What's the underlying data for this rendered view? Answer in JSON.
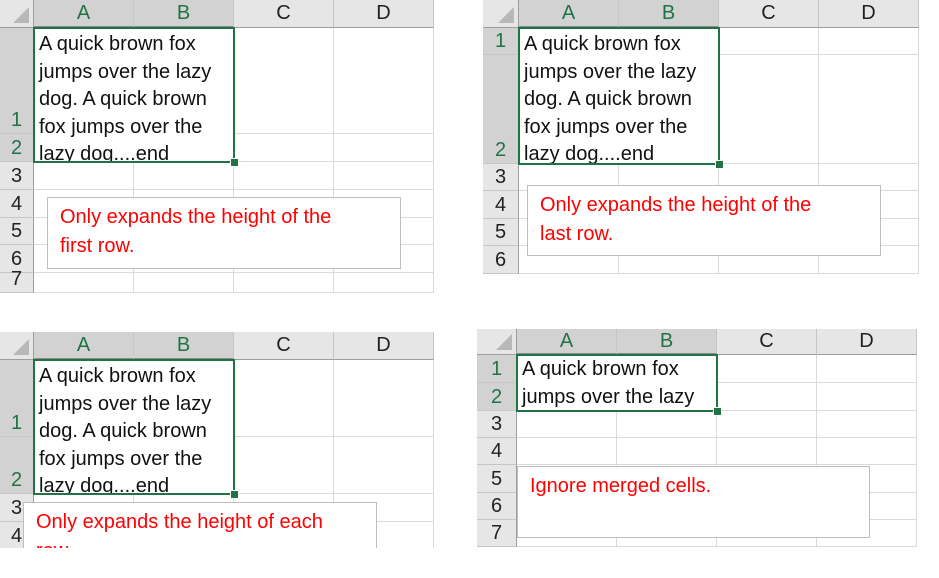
{
  "columns": [
    "A",
    "B",
    "C",
    "D"
  ],
  "selection_color": "#217346",
  "note_color": "#ff0000",
  "panels": [
    {
      "row_labels": [
        "1",
        "2",
        "3",
        "4",
        "5",
        "6",
        "7"
      ],
      "cell_lines": [
        "A quick brown fox",
        "jumps over the lazy",
        "dog. A quick brown",
        "fox jumps over the",
        "lazy dog....end"
      ],
      "note_lines": [
        "Only expands the height of the",
        "first row."
      ]
    },
    {
      "row_labels": [
        "1",
        "2",
        "3",
        "4",
        "5",
        "6"
      ],
      "cell_lines": [
        "A quick brown fox",
        "jumps over the lazy",
        "dog. A quick brown",
        "fox jumps over the",
        "lazy dog....end"
      ],
      "note_lines": [
        "Only expands the height of the",
        "last row."
      ]
    },
    {
      "row_labels": [
        "1",
        "2",
        "3",
        "4"
      ],
      "cell_lines": [
        "A quick brown fox",
        "jumps over the lazy",
        "dog. A quick brown",
        "fox jumps over the",
        "lazy dog....end"
      ],
      "note_lines": [
        "Only expands the height of each",
        "row."
      ]
    },
    {
      "row_labels": [
        "1",
        "2",
        "3",
        "4",
        "5",
        "6",
        "7"
      ],
      "cell_lines": [
        "A quick brown fox",
        "jumps over the lazy"
      ],
      "note_lines": [
        "Ignore merged cells."
      ]
    }
  ]
}
